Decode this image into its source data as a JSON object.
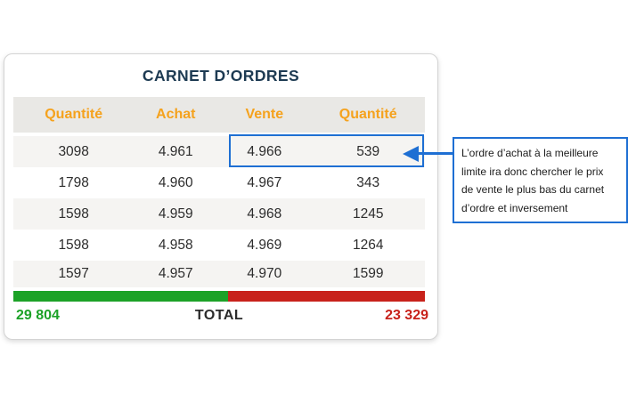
{
  "card": {
    "title": "CARNET D’ORDRES"
  },
  "table": {
    "headers": [
      "Quantité",
      "Achat",
      "Vente",
      "Quantité"
    ],
    "rows": [
      {
        "qty_buy": "3098",
        "buy": "4.961",
        "sell": "4.966",
        "qty_sell": "539"
      },
      {
        "qty_buy": "1798",
        "buy": "4.960",
        "sell": "4.967",
        "qty_sell": "343"
      },
      {
        "qty_buy": "1598",
        "buy": "4.959",
        "sell": "4.968",
        "qty_sell": "1245"
      },
      {
        "qty_buy": "1598",
        "buy": "4.958",
        "sell": "4.969",
        "qty_sell": "1264"
      },
      {
        "qty_buy": "1597",
        "buy": "4.957",
        "sell": "4.970",
        "qty_sell": "1599"
      }
    ],
    "totals": {
      "buy": "29 804",
      "label": "TOTAL",
      "sell": "23 329"
    },
    "bar": {
      "green_pct": 52.2
    }
  },
  "annotation": {
    "lines": [
      "L’ordre d’achat à la meilleure",
      "limite ira donc chercher le prix",
      "de vente le plus bas du carnet",
      "d’ordre et inversement"
    ]
  },
  "colors": {
    "navy_title": "#1d3a52",
    "orange_header": "#f5a21d",
    "green_buy": "#1ca227",
    "red_sell": "#c8221b",
    "blue_annotation": "#1e6fd3",
    "header_bg": "#e9e8e5",
    "row_alt_bg": "#f5f4f2"
  }
}
